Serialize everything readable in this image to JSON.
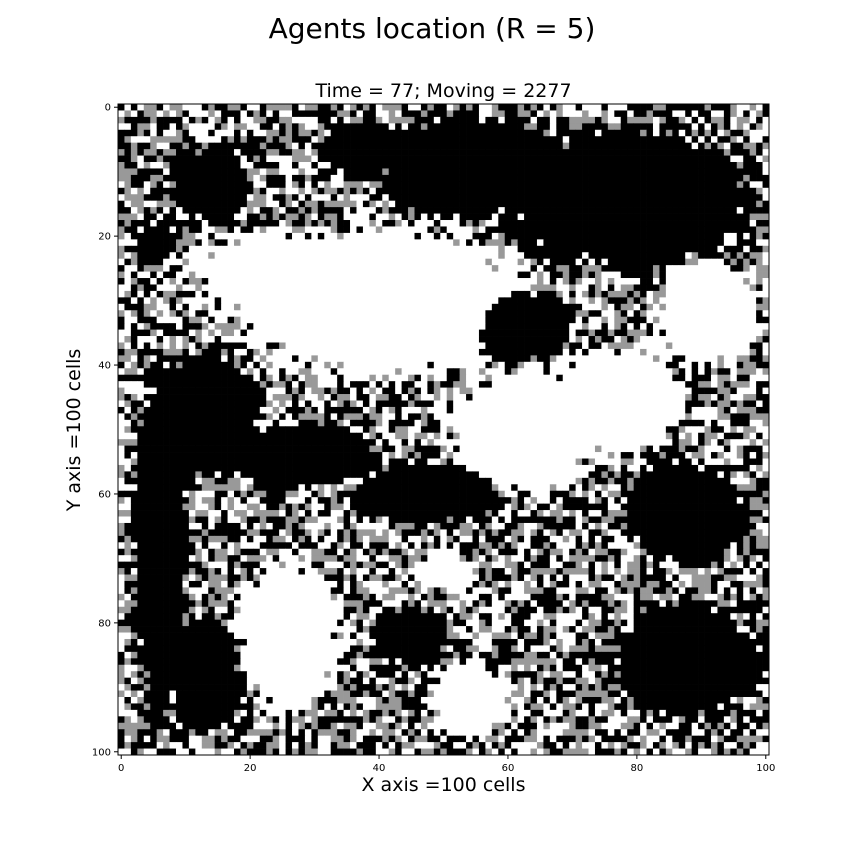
{
  "figure_title": "Agents location (R = 5)",
  "chart_data": {
    "type": "heatmap",
    "title": "Time = 77; Moving = 2277",
    "xlabel": "X axis =100 cells",
    "ylabel": "Y axis =100 cells",
    "xlim": [
      0,
      101
    ],
    "ylim": [
      101,
      0
    ],
    "xticks": [
      0,
      20,
      40,
      60,
      80,
      100
    ],
    "yticks": [
      0,
      20,
      40,
      60,
      80,
      100
    ],
    "grid_size": [
      101,
      101
    ],
    "colors": {
      "group_a": "#000000",
      "group_b": "#ffffff",
      "empty": "#999999"
    },
    "regions": [
      {
        "value": "group_a",
        "center": [
          55,
          9
        ],
        "radius": [
          16,
          8
        ]
      },
      {
        "value": "group_a",
        "center": [
          78,
          14
        ],
        "radius": [
          20,
          11
        ]
      },
      {
        "value": "group_a",
        "center": [
          37,
          6
        ],
        "radius": [
          6,
          4
        ]
      },
      {
        "value": "group_a",
        "center": [
          14,
          12
        ],
        "radius": [
          6,
          6
        ]
      },
      {
        "value": "group_a",
        "center": [
          5,
          21
        ],
        "radius": [
          3,
          3
        ]
      },
      {
        "value": "group_a",
        "center": [
          62,
          34
        ],
        "radius": [
          8,
          6
        ]
      },
      {
        "value": "group_a",
        "center": [
          6,
          68
        ],
        "radius": [
          4,
          28
        ]
      },
      {
        "value": "group_a",
        "center": [
          13,
          88
        ],
        "radius": [
          6,
          9
        ]
      },
      {
        "value": "group_a",
        "center": [
          12,
          48
        ],
        "radius": [
          9,
          10
        ]
      },
      {
        "value": "group_a",
        "center": [
          28,
          54
        ],
        "radius": [
          12,
          5
        ]
      },
      {
        "value": "group_a",
        "center": [
          47,
          60
        ],
        "radius": [
          12,
          5
        ]
      },
      {
        "value": "group_a",
        "center": [
          88,
          63
        ],
        "radius": [
          10,
          8
        ]
      },
      {
        "value": "group_a",
        "center": [
          88,
          86
        ],
        "radius": [
          12,
          9
        ]
      },
      {
        "value": "group_a",
        "center": [
          45,
          82
        ],
        "radius": [
          6,
          5
        ]
      },
      {
        "value": "group_b",
        "center": [
          40,
          30
        ],
        "radius": [
          24,
          12
        ]
      },
      {
        "value": "group_b",
        "center": [
          24,
          26
        ],
        "radius": [
          12,
          7
        ]
      },
      {
        "value": "group_b",
        "center": [
          63,
          50
        ],
        "radius": [
          12,
          10
        ]
      },
      {
        "value": "group_b",
        "center": [
          77,
          45
        ],
        "radius": [
          10,
          8
        ]
      },
      {
        "value": "group_b",
        "center": [
          91,
          32
        ],
        "radius": [
          8,
          8
        ]
      },
      {
        "value": "group_b",
        "center": [
          26,
          82
        ],
        "radius": [
          8,
          12
        ]
      },
      {
        "value": "group_b",
        "center": [
          54,
          92
        ],
        "radius": [
          6,
          6
        ]
      },
      {
        "value": "group_b",
        "center": [
          50,
          72
        ],
        "radius": [
          5,
          3
        ]
      }
    ],
    "boundary_mix": {
      "group_a": 0.38,
      "group_b": 0.32,
      "empty": 0.3
    },
    "seed": 12345
  }
}
